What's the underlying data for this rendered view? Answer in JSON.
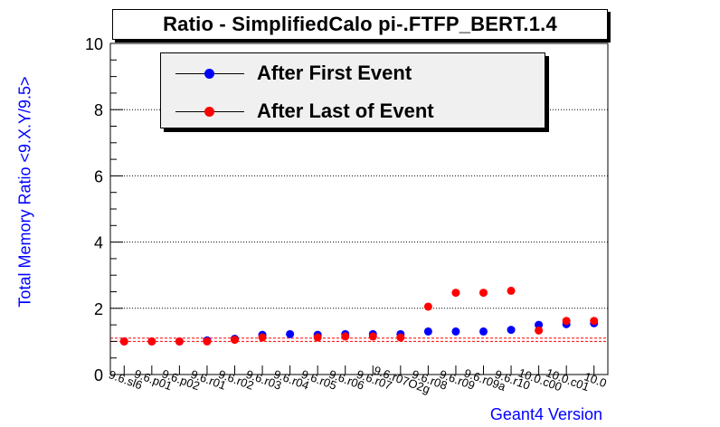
{
  "chart_data": {
    "type": "scatter",
    "title": "Ratio - SimplifiedCalo pi-.FTFP_BERT.1.4",
    "xlabel": "Geant4 Version",
    "ylabel": "Total Memory Ratio <9.X.Y/9.5>",
    "categories": [
      "9.6.sl6",
      "9.6.p01",
      "9.6.p02",
      "9.6.r01",
      "9.6.r02",
      "9.6.r03",
      "9.6.r04",
      "9.6.r05",
      "9.6.r06",
      "9.6.r07",
      "9.6.r07O2g",
      "9.6.r08",
      "9.6.r09",
      "9.6.r09a",
      "9.6.r10",
      "10.0.c00",
      "10.0.c01",
      "10.0"
    ],
    "ylim": [
      0,
      10
    ],
    "yticks": [
      "0",
      "2",
      "4",
      "6",
      "8",
      "10"
    ],
    "grid": true,
    "legend_position": "top-center",
    "reference_lines": [
      1.0,
      1.1
    ],
    "series": [
      {
        "name": "After First Event",
        "color": "#0000ff",
        "values": [
          1.0,
          1.0,
          1.0,
          1.03,
          1.08,
          1.2,
          1.22,
          1.2,
          1.22,
          1.22,
          1.22,
          1.3,
          1.3,
          1.3,
          1.35,
          1.5,
          1.52,
          1.55
        ]
      },
      {
        "name": "After Last of Event",
        "color": "#ff0000",
        "values": [
          1.0,
          1.0,
          1.0,
          1.0,
          1.05,
          1.12,
          null,
          1.12,
          1.15,
          1.15,
          1.12,
          2.05,
          2.47,
          2.47,
          2.53,
          1.33,
          1.62,
          1.62
        ]
      }
    ]
  }
}
